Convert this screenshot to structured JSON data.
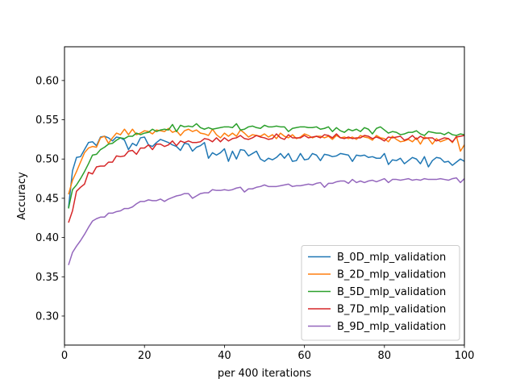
{
  "chart_data": {
    "type": "line",
    "xlabel": "per 400 iterations",
    "ylabel": "Accuracy",
    "xlim": [
      0,
      100
    ],
    "ylim": [
      0.263,
      0.643
    ],
    "xticks": [
      0,
      20,
      40,
      60,
      80,
      100
    ],
    "yticks": [
      0.3,
      0.35,
      0.4,
      0.45,
      0.5,
      0.55,
      0.6
    ],
    "grid": false,
    "legend_position": "lower-right",
    "x": [
      1,
      2,
      3,
      4,
      5,
      6,
      7,
      8,
      9,
      10,
      11,
      12,
      13,
      14,
      15,
      16,
      17,
      18,
      19,
      20,
      21,
      22,
      23,
      24,
      25,
      26,
      27,
      28,
      29,
      30,
      31,
      32,
      33,
      34,
      35,
      36,
      37,
      38,
      39,
      40,
      41,
      42,
      43,
      44,
      45,
      46,
      47,
      48,
      49,
      50,
      51,
      52,
      53,
      54,
      55,
      56,
      57,
      58,
      59,
      60,
      61,
      62,
      63,
      64,
      65,
      66,
      67,
      68,
      69,
      70,
      71,
      72,
      73,
      74,
      75,
      76,
      77,
      78,
      79,
      80,
      81,
      82,
      83,
      84,
      85,
      86,
      87,
      88,
      89,
      90,
      91,
      92,
      93,
      94,
      95,
      96,
      97,
      98,
      99,
      100
    ],
    "series": [
      {
        "name": "B_0D_mlp_validation",
        "color": "#1f77b4",
        "values": [
          0.438,
          0.485,
          0.502,
          0.503,
          0.512,
          0.521,
          0.522,
          0.517,
          0.528,
          0.529,
          0.527,
          0.523,
          0.528,
          0.527,
          0.524,
          0.512,
          0.52,
          0.517,
          0.527,
          0.528,
          0.518,
          0.516,
          0.521,
          0.525,
          0.523,
          0.521,
          0.518,
          0.516,
          0.511,
          0.52,
          0.519,
          0.51,
          0.515,
          0.517,
          0.521,
          0.501,
          0.508,
          0.505,
          0.508,
          0.513,
          0.497,
          0.51,
          0.5,
          0.512,
          0.511,
          0.504,
          0.507,
          0.51,
          0.5,
          0.497,
          0.501,
          0.499,
          0.502,
          0.507,
          0.501,
          0.507,
          0.497,
          0.498,
          0.507,
          0.499,
          0.5,
          0.507,
          0.505,
          0.498,
          0.506,
          0.505,
          0.503,
          0.504,
          0.507,
          0.506,
          0.505,
          0.497,
          0.505,
          0.504,
          0.505,
          0.502,
          0.503,
          0.501,
          0.501,
          0.507,
          0.493,
          0.499,
          0.498,
          0.501,
          0.494,
          0.498,
          0.502,
          0.5,
          0.494,
          0.503,
          0.49,
          0.498,
          0.502,
          0.501,
          0.496,
          0.497,
          0.492,
          0.496,
          0.5,
          0.497
        ]
      },
      {
        "name": "B_2D_mlp_validation",
        "color": "#ff7f0e",
        "values": [
          0.455,
          0.473,
          0.484,
          0.496,
          0.508,
          0.514,
          0.516,
          0.515,
          0.527,
          0.529,
          0.52,
          0.527,
          0.533,
          0.531,
          0.538,
          0.531,
          0.538,
          0.531,
          0.533,
          0.536,
          0.535,
          0.532,
          0.537,
          0.536,
          0.535,
          0.539,
          0.534,
          0.536,
          0.53,
          0.536,
          0.538,
          0.535,
          0.537,
          0.533,
          0.532,
          0.53,
          0.538,
          0.531,
          0.527,
          0.533,
          0.529,
          0.533,
          0.529,
          0.537,
          0.533,
          0.528,
          0.531,
          0.53,
          0.529,
          0.532,
          0.528,
          0.531,
          0.526,
          0.533,
          0.529,
          0.527,
          0.531,
          0.526,
          0.528,
          0.532,
          0.53,
          0.527,
          0.529,
          0.529,
          0.527,
          0.529,
          0.525,
          0.53,
          0.527,
          0.528,
          0.526,
          0.528,
          0.525,
          0.53,
          0.528,
          0.527,
          0.524,
          0.53,
          0.527,
          0.526,
          0.522,
          0.529,
          0.525,
          0.522,
          0.523,
          0.525,
          0.522,
          0.527,
          0.519,
          0.528,
          0.526,
          0.519,
          0.526,
          0.522,
          0.524,
          0.526,
          0.521,
          0.529,
          0.51,
          0.518
        ]
      },
      {
        "name": "B_5D_mlp_validation",
        "color": "#2ca02c",
        "values": [
          0.437,
          0.461,
          0.467,
          0.475,
          0.484,
          0.494,
          0.505,
          0.506,
          0.512,
          0.515,
          0.519,
          0.52,
          0.524,
          0.527,
          0.526,
          0.529,
          0.529,
          0.533,
          0.531,
          0.533,
          0.534,
          0.538,
          0.535,
          0.537,
          0.538,
          0.537,
          0.544,
          0.535,
          0.543,
          0.541,
          0.542,
          0.541,
          0.545,
          0.54,
          0.538,
          0.54,
          0.538,
          0.539,
          0.54,
          0.541,
          0.541,
          0.54,
          0.545,
          0.537,
          0.538,
          0.541,
          0.542,
          0.54,
          0.539,
          0.543,
          0.541,
          0.541,
          0.542,
          0.541,
          0.541,
          0.535,
          0.539,
          0.54,
          0.541,
          0.541,
          0.54,
          0.54,
          0.541,
          0.538,
          0.539,
          0.541,
          0.535,
          0.54,
          0.536,
          0.534,
          0.538,
          0.536,
          0.538,
          0.535,
          0.54,
          0.538,
          0.532,
          0.539,
          0.541,
          0.537,
          0.533,
          0.535,
          0.534,
          0.531,
          0.532,
          0.534,
          0.534,
          0.536,
          0.532,
          0.53,
          0.535,
          0.534,
          0.533,
          0.533,
          0.531,
          0.534,
          0.531,
          0.53,
          0.532,
          0.531
        ]
      },
      {
        "name": "B_7D_mlp_validation",
        "color": "#d62728",
        "values": [
          0.419,
          0.434,
          0.459,
          0.464,
          0.468,
          0.483,
          0.481,
          0.49,
          0.491,
          0.491,
          0.496,
          0.496,
          0.504,
          0.503,
          0.504,
          0.51,
          0.511,
          0.506,
          0.514,
          0.514,
          0.518,
          0.512,
          0.519,
          0.519,
          0.516,
          0.518,
          0.523,
          0.517,
          0.523,
          0.521,
          0.523,
          0.521,
          0.521,
          0.522,
          0.526,
          0.525,
          0.522,
          0.527,
          0.522,
          0.527,
          0.523,
          0.526,
          0.527,
          0.53,
          0.526,
          0.525,
          0.527,
          0.53,
          0.528,
          0.527,
          0.525,
          0.526,
          0.532,
          0.527,
          0.525,
          0.531,
          0.527,
          0.527,
          0.527,
          0.53,
          0.527,
          0.528,
          0.529,
          0.527,
          0.531,
          0.53,
          0.527,
          0.532,
          0.527,
          0.526,
          0.528,
          0.526,
          0.527,
          0.527,
          0.53,
          0.529,
          0.526,
          0.528,
          0.526,
          0.523,
          0.528,
          0.527,
          0.528,
          0.529,
          0.524,
          0.526,
          0.53,
          0.525,
          0.529,
          0.526,
          0.527,
          0.527,
          0.523,
          0.525,
          0.527,
          0.526,
          0.522,
          0.528,
          0.529,
          0.53
        ]
      },
      {
        "name": "B_9D_mlp_validation",
        "color": "#9467bd",
        "values": [
          0.365,
          0.381,
          0.389,
          0.396,
          0.404,
          0.413,
          0.421,
          0.424,
          0.426,
          0.426,
          0.431,
          0.431,
          0.433,
          0.434,
          0.437,
          0.437,
          0.439,
          0.443,
          0.446,
          0.446,
          0.448,
          0.447,
          0.447,
          0.449,
          0.446,
          0.449,
          0.451,
          0.453,
          0.454,
          0.456,
          0.456,
          0.45,
          0.453,
          0.456,
          0.457,
          0.457,
          0.461,
          0.46,
          0.46,
          0.461,
          0.46,
          0.461,
          0.463,
          0.464,
          0.458,
          0.462,
          0.462,
          0.464,
          0.465,
          0.467,
          0.465,
          0.465,
          0.465,
          0.466,
          0.467,
          0.468,
          0.465,
          0.466,
          0.466,
          0.467,
          0.468,
          0.467,
          0.469,
          0.47,
          0.464,
          0.469,
          0.469,
          0.471,
          0.472,
          0.472,
          0.469,
          0.474,
          0.47,
          0.472,
          0.47,
          0.472,
          0.473,
          0.471,
          0.473,
          0.475,
          0.47,
          0.474,
          0.474,
          0.473,
          0.474,
          0.475,
          0.473,
          0.474,
          0.473,
          0.475,
          0.474,
          0.474,
          0.474,
          0.475,
          0.474,
          0.473,
          0.475,
          0.476,
          0.47,
          0.475
        ]
      }
    ]
  }
}
